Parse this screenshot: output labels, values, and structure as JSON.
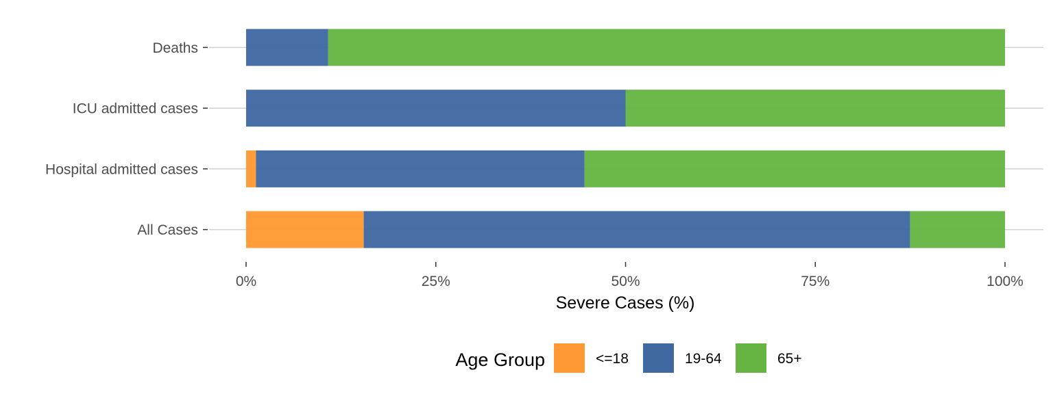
{
  "chart_data": {
    "type": "bar",
    "orientation": "horizontal",
    "stacked": true,
    "categories": [
      "All Cases",
      "Hospital admitted cases",
      "ICU admitted cases",
      "Deaths"
    ],
    "series": [
      {
        "name": "<=18",
        "color": "#ff9933",
        "values": [
          15.5,
          1.3,
          0.0,
          0.0
        ]
      },
      {
        "name": "19-64",
        "color": "#4169a1",
        "values": [
          72.0,
          43.3,
          50.0,
          10.8
        ]
      },
      {
        "name": "65+",
        "color": "#66b543",
        "values": [
          12.5,
          55.4,
          50.0,
          89.2
        ]
      }
    ],
    "xlabel": "Severe Cases (%)",
    "ylabel": "",
    "xlim": [
      0,
      100
    ],
    "x_ticks": [
      0,
      25,
      50,
      75,
      100
    ],
    "x_tick_labels": [
      "0%",
      "25%",
      "50%",
      "75%",
      "100%"
    ],
    "grid": "horizontal-major",
    "legend": {
      "title": "Age Group",
      "placement": "bottom"
    }
  }
}
